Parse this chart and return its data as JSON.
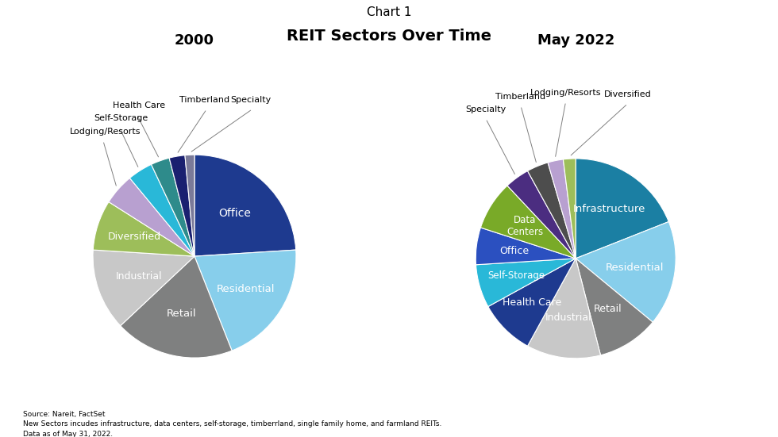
{
  "title_main": "Chart 1",
  "title_sub": "REIT Sectors Over Time",
  "chart1_title": "2000",
  "chart2_title": "May 2022",
  "chart1_labels": [
    "Office",
    "Residential",
    "Retail",
    "Industrial",
    "Diversified",
    "Lodging/Resorts",
    "Self-Storage",
    "Health Care",
    "Timberland",
    "Specialty"
  ],
  "chart1_sizes": [
    24,
    20,
    19,
    13,
    8,
    5,
    4,
    3,
    2.5,
    1.5
  ],
  "chart1_colors": [
    "#1e3a8f",
    "#87ceeb",
    "#7f8080",
    "#c8c8c8",
    "#9dbe5a",
    "#b8a0d0",
    "#29b8d8",
    "#2e8b8b",
    "#1a2070",
    "#7a7a99"
  ],
  "chart2_labels": [
    "Infrastructure",
    "Residential",
    "Retail",
    "Industrial",
    "Health Care",
    "Self-Storage",
    "Office",
    "Data Centers",
    "Specialty",
    "Timberland",
    "Lodging/Resorts",
    "Diversified"
  ],
  "chart2_sizes": [
    19,
    17,
    10,
    12,
    9,
    7,
    6,
    8,
    4,
    3.5,
    2.5,
    2
  ],
  "chart2_colors": [
    "#1b7fa3",
    "#87ceeb",
    "#7f8080",
    "#c8c8c8",
    "#1e3a8f",
    "#29b8d8",
    "#2b50c0",
    "#79aa28",
    "#4b2d80",
    "#4d4d4d",
    "#b8a0d0",
    "#9dbe5a"
  ],
  "footnote": "Source: Nareit, FactSet\nNew Sectors incudes infrastructure, data centers, self-storage, timberrland, single family home, and farmland REITs.\nData as of May 31, 2022.",
  "bg_color": "#ffffff"
}
